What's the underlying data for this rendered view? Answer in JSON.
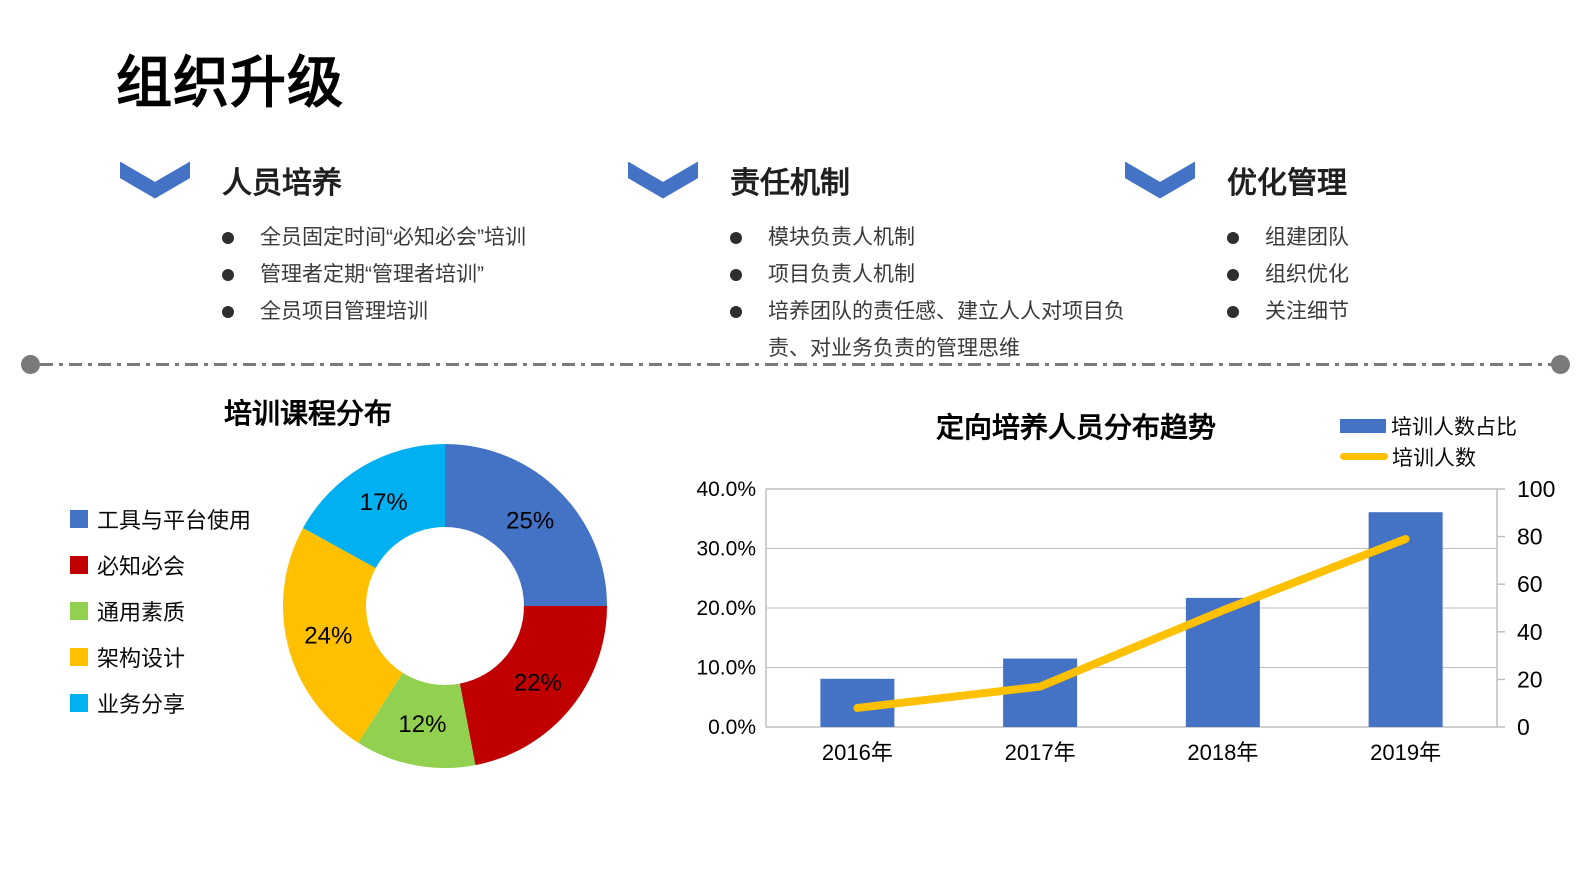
{
  "page": {
    "title": "组织升级"
  },
  "sections": [
    {
      "title": "人员培养",
      "bullets": [
        "全员固定时间“必知必会”培训",
        "管理者定期“管理者培训”",
        "全员项目管理培训"
      ]
    },
    {
      "title": "责任机制",
      "bullets": [
        "模块负责人机制",
        "项目负责人机制",
        "培养团队的责任感、建立人人对项目负责、对业务负责的管理思维"
      ]
    },
    {
      "title": "优化管理",
      "bullets": [
        "组建团队",
        "组织优化",
        "关注细节"
      ]
    }
  ],
  "divider": {
    "style": "dash-dot",
    "color": "#7a7a7a"
  },
  "theme": {
    "chevron_blue": "#4472C4",
    "grid_gray": "#BFBFBF",
    "axis_text": "#000000"
  },
  "chart_data": [
    {
      "type": "pie",
      "subtype": "donut",
      "title": "培训课程分布",
      "labels": [
        "工具与平台使用",
        "必知必会",
        "通用素质",
        "架构设计",
        "业务分享"
      ],
      "values": [
        25,
        22,
        12,
        24,
        17
      ],
      "value_labels": [
        "25%",
        "22%",
        "12%",
        "24%",
        "17%"
      ],
      "colors": [
        "#4472C4",
        "#C00000",
        "#92D050",
        "#FFC000",
        "#00B0F0"
      ],
      "start_angle_deg": 0,
      "direction": "clockwise",
      "inner_radius_ratio": 0.49,
      "legend_position": "left"
    },
    {
      "type": "bar",
      "subtype": "combo-bar-line",
      "title": "定向培养人员分布趋势",
      "categories": [
        "2016年",
        "2017年",
        "2018年",
        "2019年"
      ],
      "series": [
        {
          "name": "培训人数占比",
          "chart": "bar",
          "axis": "left",
          "color": "#4472C4",
          "unit": "%",
          "values": [
            8.1,
            11.5,
            21.7,
            36.1
          ]
        },
        {
          "name": "培训人数",
          "chart": "line",
          "axis": "right",
          "color": "#FFC000",
          "values": [
            8,
            17,
            49,
            79
          ]
        }
      ],
      "left_axis": {
        "min": 0,
        "max": 40,
        "step": 10,
        "labels": [
          "0.0%",
          "10.0%",
          "20.0%",
          "30.0%",
          "40.0%"
        ]
      },
      "right_axis": {
        "min": 0,
        "max": 100,
        "step": 20,
        "labels": [
          "0",
          "20",
          "40",
          "60",
          "80",
          "100"
        ]
      },
      "grid": "horizontal",
      "legend_position": "top-right"
    }
  ]
}
